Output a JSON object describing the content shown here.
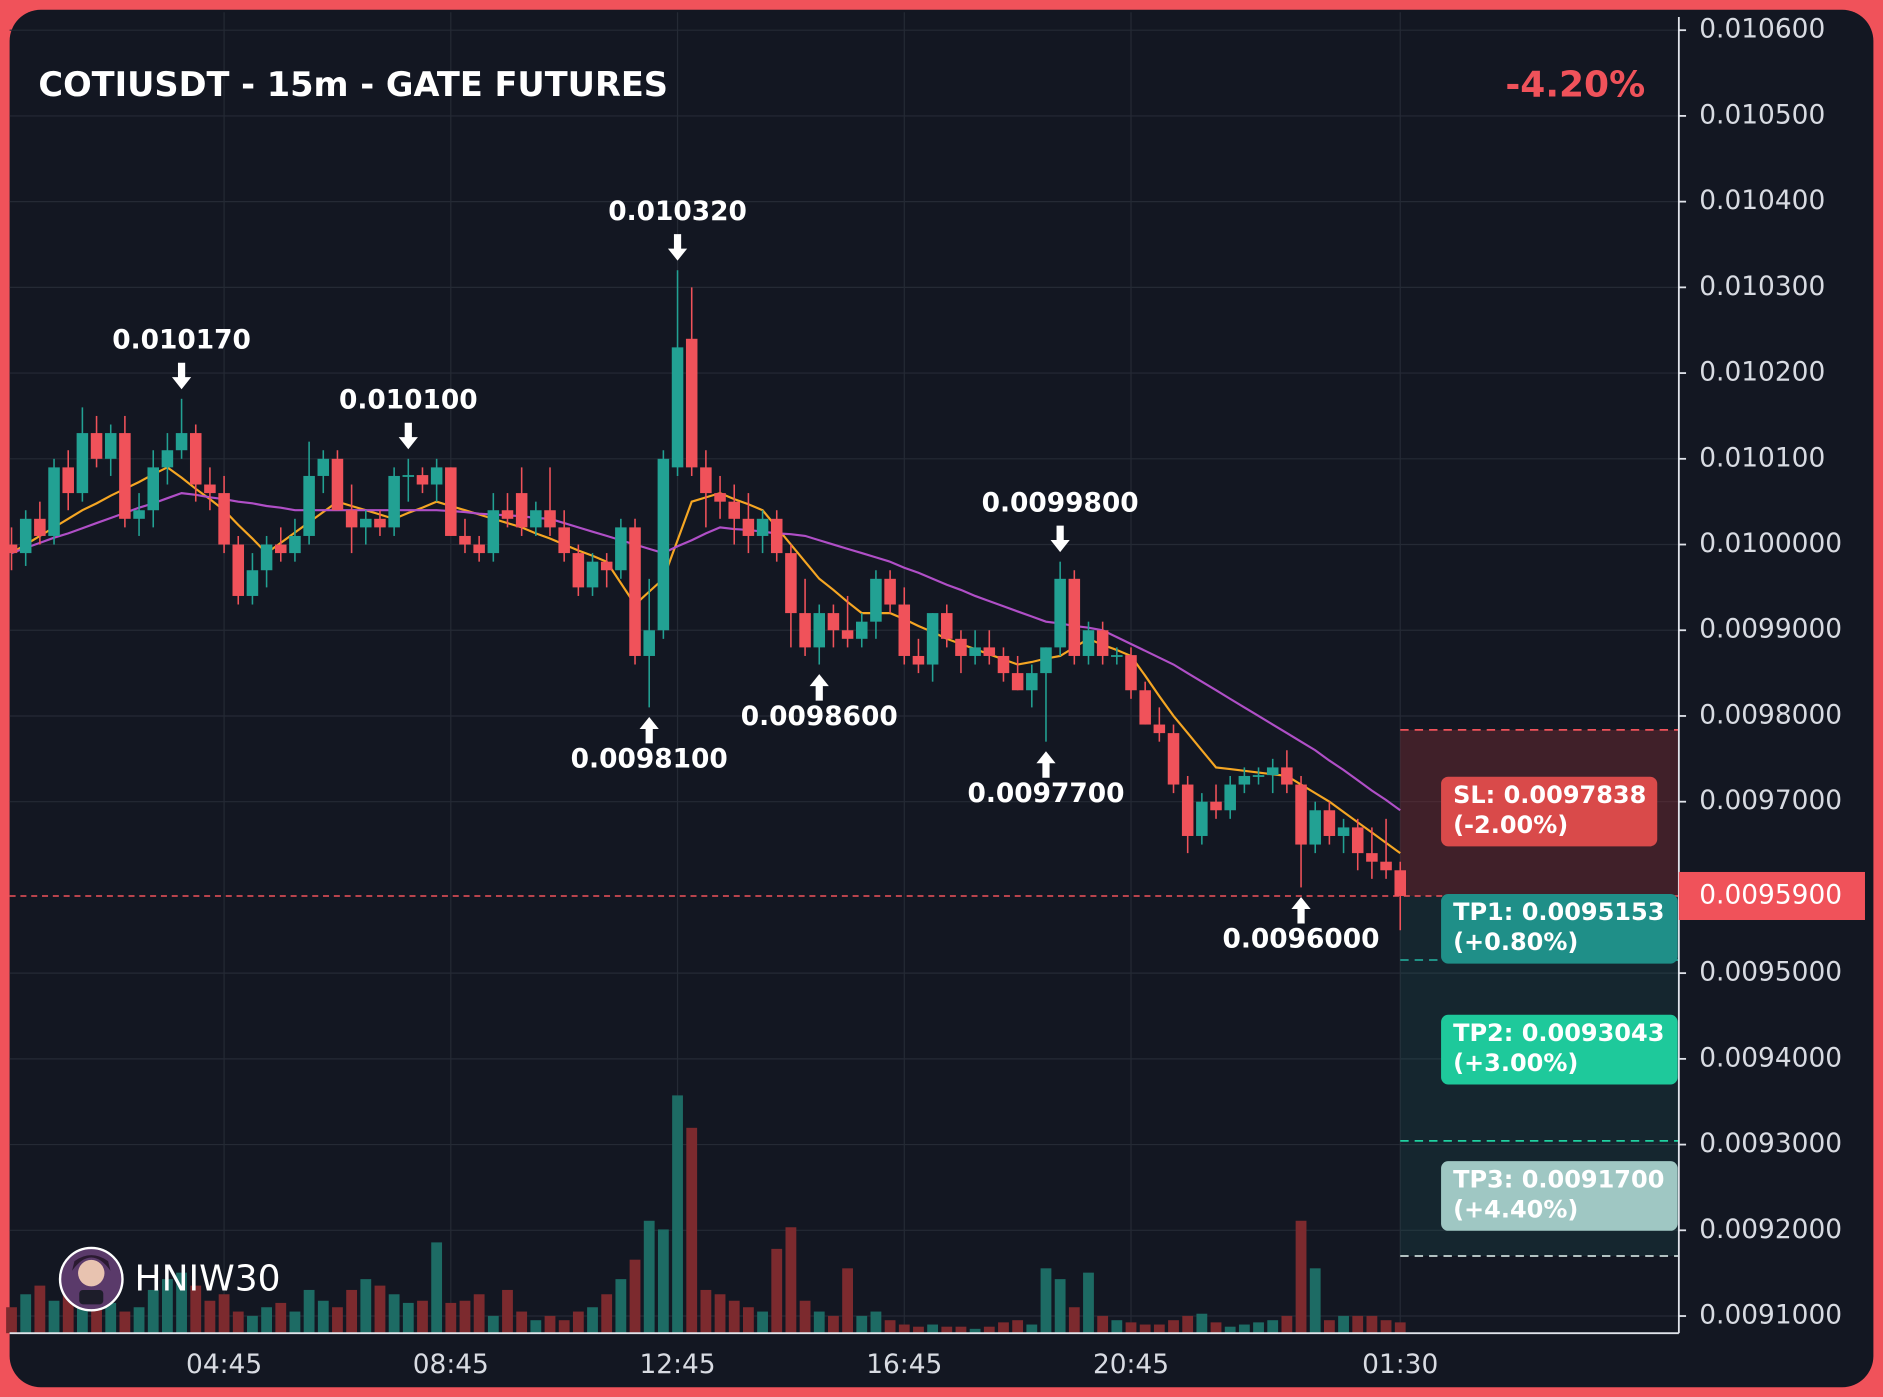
{
  "chart_data": {
    "type": "candlestick",
    "title": "COTIUSDT - 15m - GATE FUTURES",
    "change": "-4.20%",
    "watermark": "HNIW30",
    "categories": [
      null,
      null,
      null,
      null,
      null,
      null,
      null,
      null,
      null,
      null,
      null,
      null,
      null,
      null,
      null,
      "04:45",
      null,
      null,
      null,
      null,
      null,
      null,
      null,
      null,
      null,
      null,
      null,
      null,
      null,
      null,
      null,
      "08:45",
      null,
      null,
      null,
      null,
      null,
      null,
      null,
      null,
      null,
      null,
      null,
      null,
      null,
      null,
      null,
      "12:45",
      null,
      null,
      null,
      null,
      null,
      null,
      null,
      null,
      null,
      null,
      null,
      null,
      null,
      null,
      null,
      "16:45",
      null,
      null,
      null,
      null,
      null,
      null,
      null,
      null,
      null,
      null,
      null,
      null,
      null,
      null,
      null,
      "20:45",
      null,
      null,
      null,
      null,
      null,
      null,
      null,
      null,
      null,
      null,
      null,
      null,
      null,
      null,
      null,
      null,
      null,
      null,
      "01:30"
    ],
    "open": [
      0.01,
      0.00999,
      0.01003,
      0.01001,
      0.01009,
      0.01006,
      0.01013,
      0.0101,
      0.01013,
      0.01003,
      0.01004,
      0.01009,
      0.01011,
      0.01013,
      0.01007,
      0.01006,
      0.01,
      0.00994,
      0.00997,
      0.01,
      0.00999,
      0.01001,
      0.01008,
      0.0101,
      0.01004,
      0.01002,
      0.01003,
      0.01002,
      0.01008,
      0.010081,
      0.01007,
      0.01009,
      0.01001,
      0.01,
      0.00999,
      0.01004,
      0.01006,
      0.01002,
      0.01004,
      0.01002,
      0.00999,
      0.00995,
      0.00998,
      0.00997,
      0.01002,
      0.00987,
      0.0099,
      0.01009,
      0.01024,
      0.01009,
      0.01006,
      0.01005,
      0.01003,
      0.01001,
      0.01003,
      0.00999,
      0.00992,
      0.00988,
      0.00992,
      0.0099,
      0.00989,
      0.00991,
      0.00996,
      0.00993,
      0.00987,
      0.00986,
      0.00992,
      0.00989,
      0.00987,
      0.00988,
      0.00987,
      0.00985,
      0.00983,
      0.00985,
      0.00988,
      0.00996,
      0.00987,
      0.0099,
      0.00987,
      0.009871,
      0.00983,
      0.00979,
      0.00978,
      0.00972,
      0.00966,
      0.0097,
      0.00969,
      0.00972,
      0.00973,
      0.009731,
      0.00974,
      0.00972,
      0.00965,
      0.00969,
      0.00966,
      0.00967,
      0.00964,
      0.00963,
      0.00962
    ],
    "high": [
      0.01002,
      0.01004,
      0.01005,
      0.0101,
      0.01011,
      0.01016,
      0.01015,
      0.01014,
      0.01015,
      0.01006,
      0.01011,
      0.01013,
      0.01017,
      0.01014,
      0.01009,
      0.01008,
      0.01001,
      0.00999,
      0.01001,
      0.01002,
      0.01003,
      0.01012,
      0.01011,
      0.01011,
      0.01007,
      0.01004,
      0.01004,
      0.01009,
      0.0101,
      0.01009,
      0.0101,
      0.01009,
      0.01003,
      0.01001,
      0.01006,
      0.01006,
      0.01009,
      0.01005,
      0.01009,
      0.01004,
      0.01,
      0.00999,
      0.00999,
      0.01003,
      0.01003,
      0.00996,
      0.01011,
      0.01032,
      0.0103,
      0.01011,
      0.01008,
      0.01007,
      0.01006,
      0.01004,
      0.01004,
      0.01,
      0.00996,
      0.00993,
      0.00993,
      0.00994,
      0.00992,
      0.00997,
      0.00997,
      0.00995,
      0.00989,
      0.00992,
      0.00993,
      0.0099,
      0.0099,
      0.0099,
      0.00988,
      0.00987,
      0.00986,
      0.00988,
      0.00998,
      0.00997,
      0.00991,
      0.00991,
      0.00988,
      0.00988,
      0.00984,
      0.00981,
      0.00979,
      0.00973,
      0.00971,
      0.00972,
      0.00973,
      0.00974,
      0.00974,
      0.00975,
      0.00976,
      0.00973,
      0.0097,
      0.0097,
      0.00968,
      0.00968,
      0.00967,
      0.00968,
      0.00963
    ],
    "low": [
      0.00997,
      0.009975,
      0.01,
      0.01,
      0.01004,
      0.01005,
      0.01009,
      0.01008,
      0.01002,
      0.01001,
      0.01002,
      0.01007,
      0.0101,
      0.01005,
      0.01004,
      0.00999,
      0.00993,
      0.00993,
      0.00995,
      0.00998,
      0.00998,
      0.01,
      0.01006,
      0.01004,
      0.00999,
      0.01,
      0.01001,
      0.01001,
      0.01005,
      0.01006,
      0.01005,
      0.01001,
      0.00999,
      0.00998,
      0.00998,
      0.01002,
      0.01001,
      0.01001,
      0.01001,
      0.00998,
      0.00994,
      0.00994,
      0.00995,
      0.00996,
      0.00986,
      0.00981,
      0.00989,
      0.01008,
      0.01008,
      0.01002,
      0.01003,
      0.01,
      0.00999,
      0.00999,
      0.00998,
      0.00988,
      0.00987,
      0.00986,
      0.00988,
      0.00988,
      0.00988,
      0.00989,
      0.00992,
      0.00986,
      0.00985,
      0.00984,
      0.00988,
      0.00985,
      0.00986,
      0.00986,
      0.00984,
      0.00983,
      0.00981,
      0.00977,
      0.00987,
      0.00986,
      0.00986,
      0.00986,
      0.00986,
      0.00982,
      0.00979,
      0.00977,
      0.00971,
      0.00964,
      0.00965,
      0.00968,
      0.00968,
      0.00971,
      0.00972,
      0.00971,
      0.00971,
      0.0096,
      0.00964,
      0.00965,
      0.00964,
      0.00962,
      0.00961,
      0.00961,
      0.00955
    ],
    "close": [
      0.00999,
      0.01003,
      0.01001,
      0.01009,
      0.01006,
      0.01013,
      0.0101,
      0.01013,
      0.01003,
      0.01004,
      0.01009,
      0.01011,
      0.01013,
      0.01007,
      0.01006,
      0.01,
      0.00994,
      0.00997,
      0.01,
      0.00999,
      0.01001,
      0.01008,
      0.0101,
      0.01004,
      0.01002,
      0.01003,
      0.01002,
      0.01008,
      0.010081,
      0.01007,
      0.01009,
      0.01001,
      0.01,
      0.00999,
      0.01004,
      0.01003,
      0.01002,
      0.01004,
      0.01002,
      0.00999,
      0.00995,
      0.00998,
      0.00997,
      0.01002,
      0.00987,
      0.0099,
      0.0101,
      0.01023,
      0.01009,
      0.01006,
      0.01005,
      0.01003,
      0.01001,
      0.01003,
      0.00999,
      0.00992,
      0.00988,
      0.00992,
      0.0099,
      0.00989,
      0.00991,
      0.00996,
      0.00993,
      0.00987,
      0.00986,
      0.00992,
      0.00989,
      0.00987,
      0.00988,
      0.00987,
      0.00985,
      0.00983,
      0.00985,
      0.00988,
      0.00996,
      0.00987,
      0.0099,
      0.00987,
      0.009871,
      0.00983,
      0.00979,
      0.00978,
      0.00972,
      0.00966,
      0.0097,
      0.00969,
      0.00972,
      0.00973,
      0.009731,
      0.00974,
      0.00972,
      0.00965,
      0.00969,
      0.00966,
      0.00967,
      0.00964,
      0.00963,
      0.00962,
      0.00959
    ],
    "volume": [
      12,
      18,
      22,
      15,
      30,
      25,
      20,
      14,
      10,
      12,
      20,
      25,
      28,
      22,
      15,
      18,
      10,
      8,
      12,
      14,
      10,
      20,
      15,
      12,
      20,
      25,
      22,
      18,
      14,
      15,
      42,
      14,
      15,
      18,
      8,
      20,
      10,
      6,
      8,
      6,
      10,
      12,
      18,
      25,
      34,
      52,
      48,
      110,
      95,
      20,
      18,
      15,
      12,
      10,
      39,
      49,
      15,
      10,
      8,
      30,
      8,
      10,
      6,
      4,
      3,
      4,
      3,
      3,
      2,
      3,
      5,
      6,
      4,
      30,
      25,
      12,
      28,
      8,
      6,
      5,
      4,
      4,
      6,
      8,
      9,
      5,
      3,
      4,
      5,
      6,
      8,
      52,
      30,
      6,
      8,
      8,
      8,
      6,
      5
    ],
    "up_color": "#22a193",
    "down_color": "#f0525a",
    "up_volume_color": "#1d6b64",
    "down_volume_color": "#7c2a2e",
    "lines": [
      {
        "color": "#f5a623",
        "values": [
          0.00999,
          0.01,
          0.01001,
          0.01002,
          0.01003,
          0.01004,
          0.010048,
          0.010057,
          0.010065,
          0.010073,
          0.010082,
          0.01009,
          0.010078,
          0.010065,
          0.010053,
          0.01004,
          0.010023,
          0.010007,
          0.00999,
          0.010002,
          0.010014,
          0.010026,
          0.010038,
          0.01005,
          0.010045,
          0.01004,
          0.010035,
          0.01003,
          0.010037,
          0.010043,
          0.01005,
          0.010045,
          0.01004,
          0.010035,
          0.01003,
          0.010025,
          0.01002,
          0.010013,
          0.010007,
          0.01,
          0.009993,
          0.009987,
          0.00998,
          0.009955,
          0.00993,
          0.009945,
          0.00996,
          0.010005,
          0.01005,
          0.010055,
          0.01006,
          0.010053,
          0.010047,
          0.01004,
          0.01002,
          0.01,
          0.00998,
          0.00996,
          0.009947,
          0.009933,
          0.00992,
          0.00992,
          0.00992,
          0.009913,
          0.009905,
          0.009898,
          0.00989,
          0.009884,
          0.009878,
          0.009872,
          0.009866,
          0.00986,
          0.009863,
          0.009867,
          0.00987,
          0.00988,
          0.00989,
          0.009883,
          0.009877,
          0.00987,
          0.009847,
          0.009823,
          0.0098,
          0.00978,
          0.00976,
          0.00974,
          0.009738,
          0.009736,
          0.009734,
          0.009732,
          0.00973,
          0.00972,
          0.00971,
          0.0097,
          0.009688,
          0.009676,
          0.009664,
          0.009652,
          0.00964
        ]
      },
      {
        "color": "#b04fc7",
        "values": [
          0.00999,
          0.009996,
          0.010002,
          0.010008,
          0.010013,
          0.010019,
          0.010025,
          0.010031,
          0.010037,
          0.010043,
          0.010048,
          0.010054,
          0.01006,
          0.010058,
          0.010055,
          0.010053,
          0.01005,
          0.010048,
          0.010045,
          0.010043,
          0.01004,
          0.01004,
          0.01004,
          0.01004,
          0.01004,
          0.01004,
          0.01004,
          0.01004,
          0.01004,
          0.01004,
          0.01004,
          0.010039,
          0.010038,
          0.010036,
          0.010035,
          0.010034,
          0.010033,
          0.010031,
          0.01003,
          0.010025,
          0.01002,
          0.010015,
          0.01001,
          0.010005,
          0.01,
          0.009995,
          0.00999,
          0.009998,
          0.010005,
          0.010013,
          0.01002,
          0.010018,
          0.010017,
          0.010015,
          0.010013,
          0.010012,
          0.01001,
          0.010005,
          0.01,
          0.009995,
          0.00999,
          0.009985,
          0.00998,
          0.009973,
          0.009967,
          0.00996,
          0.009953,
          0.009947,
          0.00994,
          0.009934,
          0.009928,
          0.009922,
          0.009916,
          0.00991,
          0.009908,
          0.009905,
          0.009903,
          0.0099,
          0.009892,
          0.009884,
          0.009876,
          0.009868,
          0.00986,
          0.00985,
          0.00984,
          0.00983,
          0.00982,
          0.00981,
          0.0098,
          0.00979,
          0.00978,
          0.00977,
          0.00976,
          0.009748,
          0.009737,
          0.009725,
          0.009713,
          0.009702,
          0.00969
        ]
      }
    ],
    "ylim": [
      0.00908,
      0.010621
    ],
    "yticks": [
      {
        "value": 0.0106,
        "label": "0.010600"
      },
      {
        "value": 0.0105,
        "label": "0.010500"
      },
      {
        "value": 0.0104,
        "label": "0.010400"
      },
      {
        "value": 0.0103,
        "label": "0.010300"
      },
      {
        "value": 0.0102,
        "label": "0.010200"
      },
      {
        "value": 0.0101,
        "label": "0.010100"
      },
      {
        "value": 0.01,
        "label": "0.0100000"
      },
      {
        "value": 0.0099,
        "label": "0.0099000"
      },
      {
        "value": 0.0098,
        "label": "0.0098000"
      },
      {
        "value": 0.0097,
        "label": "0.0097000"
      },
      {
        "value": 0.0095,
        "label": "0.0095000"
      },
      {
        "value": 0.0094,
        "label": "0.0094000"
      },
      {
        "value": 0.0093,
        "label": "0.0093000"
      },
      {
        "value": 0.0092,
        "label": "0.0092000"
      },
      {
        "value": 0.0091,
        "label": "0.0091000"
      }
    ],
    "grid": true,
    "last_price": {
      "value": 0.00959,
      "label": "0.0095900",
      "color": "#f0525a"
    },
    "annotations": [
      {
        "index": 12,
        "value": 0.01017,
        "label": "0.010170",
        "position": "above"
      },
      {
        "index": 28,
        "value": 0.0101,
        "label": "0.010100",
        "position": "above"
      },
      {
        "index": 47,
        "value": 0.01032,
        "label": "0.010320",
        "position": "above"
      },
      {
        "index": 45,
        "value": 0.00981,
        "label": "0.0098100",
        "position": "below"
      },
      {
        "index": 57,
        "value": 0.00986,
        "label": "0.0098600",
        "position": "below"
      },
      {
        "index": 74,
        "value": 0.00998,
        "label": "0.0099800",
        "position": "above"
      },
      {
        "index": 73,
        "value": 0.00977,
        "label": "0.0097700",
        "position": "below"
      },
      {
        "index": 91,
        "value": 0.0096,
        "label": "0.0096000",
        "position": "below"
      }
    ],
    "levels": [
      {
        "value": 0.0097838,
        "label": "SL: 0.0097838",
        "change": "(-2.00%)",
        "color": "#d94a4a",
        "line_color": "#f0525a"
      },
      {
        "value": 0.0095153,
        "label": "TP1: 0.0095153",
        "change": "(+0.80%)",
        "color": "#1f8f88",
        "line_color": "#22a193"
      },
      {
        "value": 0.0093043,
        "label": "TP2: 0.0093043",
        "change": "(+3.00%)",
        "color": "#1ec99b",
        "line_color": "#1fd1a0"
      },
      {
        "value": 0.00917,
        "label": "TP3: 0.0091700",
        "change": "(+4.40%)",
        "color": "#9fc7c3",
        "line_color": "#c9d8d8"
      }
    ]
  }
}
